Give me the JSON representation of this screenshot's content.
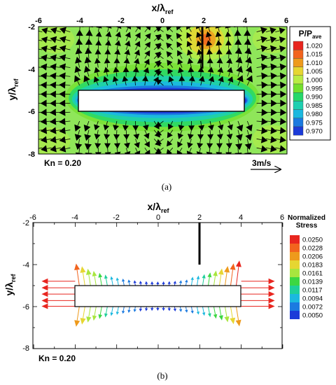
{
  "colors": {
    "field_background": "#8fe65a",
    "body_fill": "#ffffff",
    "wall": "#000000"
  },
  "chart_data": [
    {
      "panel": "a",
      "type": "heatmap",
      "caption": "(a)",
      "xlabel": {
        "main": "x/λ",
        "sub": "ref"
      },
      "ylabel": {
        "main": "y/λ",
        "sub": "ref"
      },
      "xlim": [
        -6,
        6
      ],
      "ylim": [
        -8,
        -2
      ],
      "xticks": [
        "-6",
        "-4",
        "-2",
        "0",
        "2",
        "4",
        "6"
      ],
      "yticks": [
        "-2",
        "-4",
        "-6",
        "-8"
      ],
      "legend": {
        "title_main": "P/P",
        "title_sub": "ave",
        "levels": [
          "1.020",
          "1.015",
          "1.010",
          "1.005",
          "1.000",
          "0.995",
          "0.990",
          "0.985",
          "0.980",
          "0.975",
          "0.970"
        ],
        "colors": [
          "#e8261f",
          "#f2641e",
          "#ee9a1c",
          "#e6d632",
          "#b9ec45",
          "#74e02e",
          "#25d86a",
          "#1ecfb0",
          "#1bb8df",
          "#1b7ae0",
          "#1c3bd8"
        ]
      },
      "annotation": "Kn = 0.20",
      "scale_arrow_label": "3m/s",
      "body": {
        "x": [
          -4,
          4
        ],
        "y": [
          -6,
          -5
        ]
      },
      "wall": {
        "x": 2,
        "y": [
          -2,
          -4
        ]
      }
    },
    {
      "panel": "b",
      "type": "scatter",
      "caption": "(b)",
      "xlabel": {
        "main": "x/λ",
        "sub": "ref"
      },
      "ylabel": {
        "main": "y/λ",
        "sub": "ref"
      },
      "xlim": [
        -6,
        6
      ],
      "ylim": [
        -8,
        -2
      ],
      "xticks": [
        "-6",
        "-4",
        "-2",
        "0",
        "2",
        "4",
        "6"
      ],
      "yticks": [
        "-2",
        "-4",
        "-6",
        "-8"
      ],
      "legend": {
        "title": "Normalized Stress",
        "levels": [
          "0.0250",
          "0.0228",
          "0.0206",
          "0.0183",
          "0.0161",
          "0.0139",
          "0.0117",
          "0.0094",
          "0.0072",
          "0.0050"
        ],
        "colors": [
          "#e8261f",
          "#f2641e",
          "#ee9a1c",
          "#e6d632",
          "#a8e63e",
          "#3cd742",
          "#1ecf9a",
          "#1bb8df",
          "#1b7ae0",
          "#1c3bd8"
        ]
      },
      "annotation": "Kn = 0.20",
      "body": {
        "x": [
          -4,
          4
        ],
        "y": [
          -6,
          -5
        ]
      },
      "wall": {
        "x": 2,
        "y": [
          -2,
          -4
        ]
      }
    }
  ]
}
